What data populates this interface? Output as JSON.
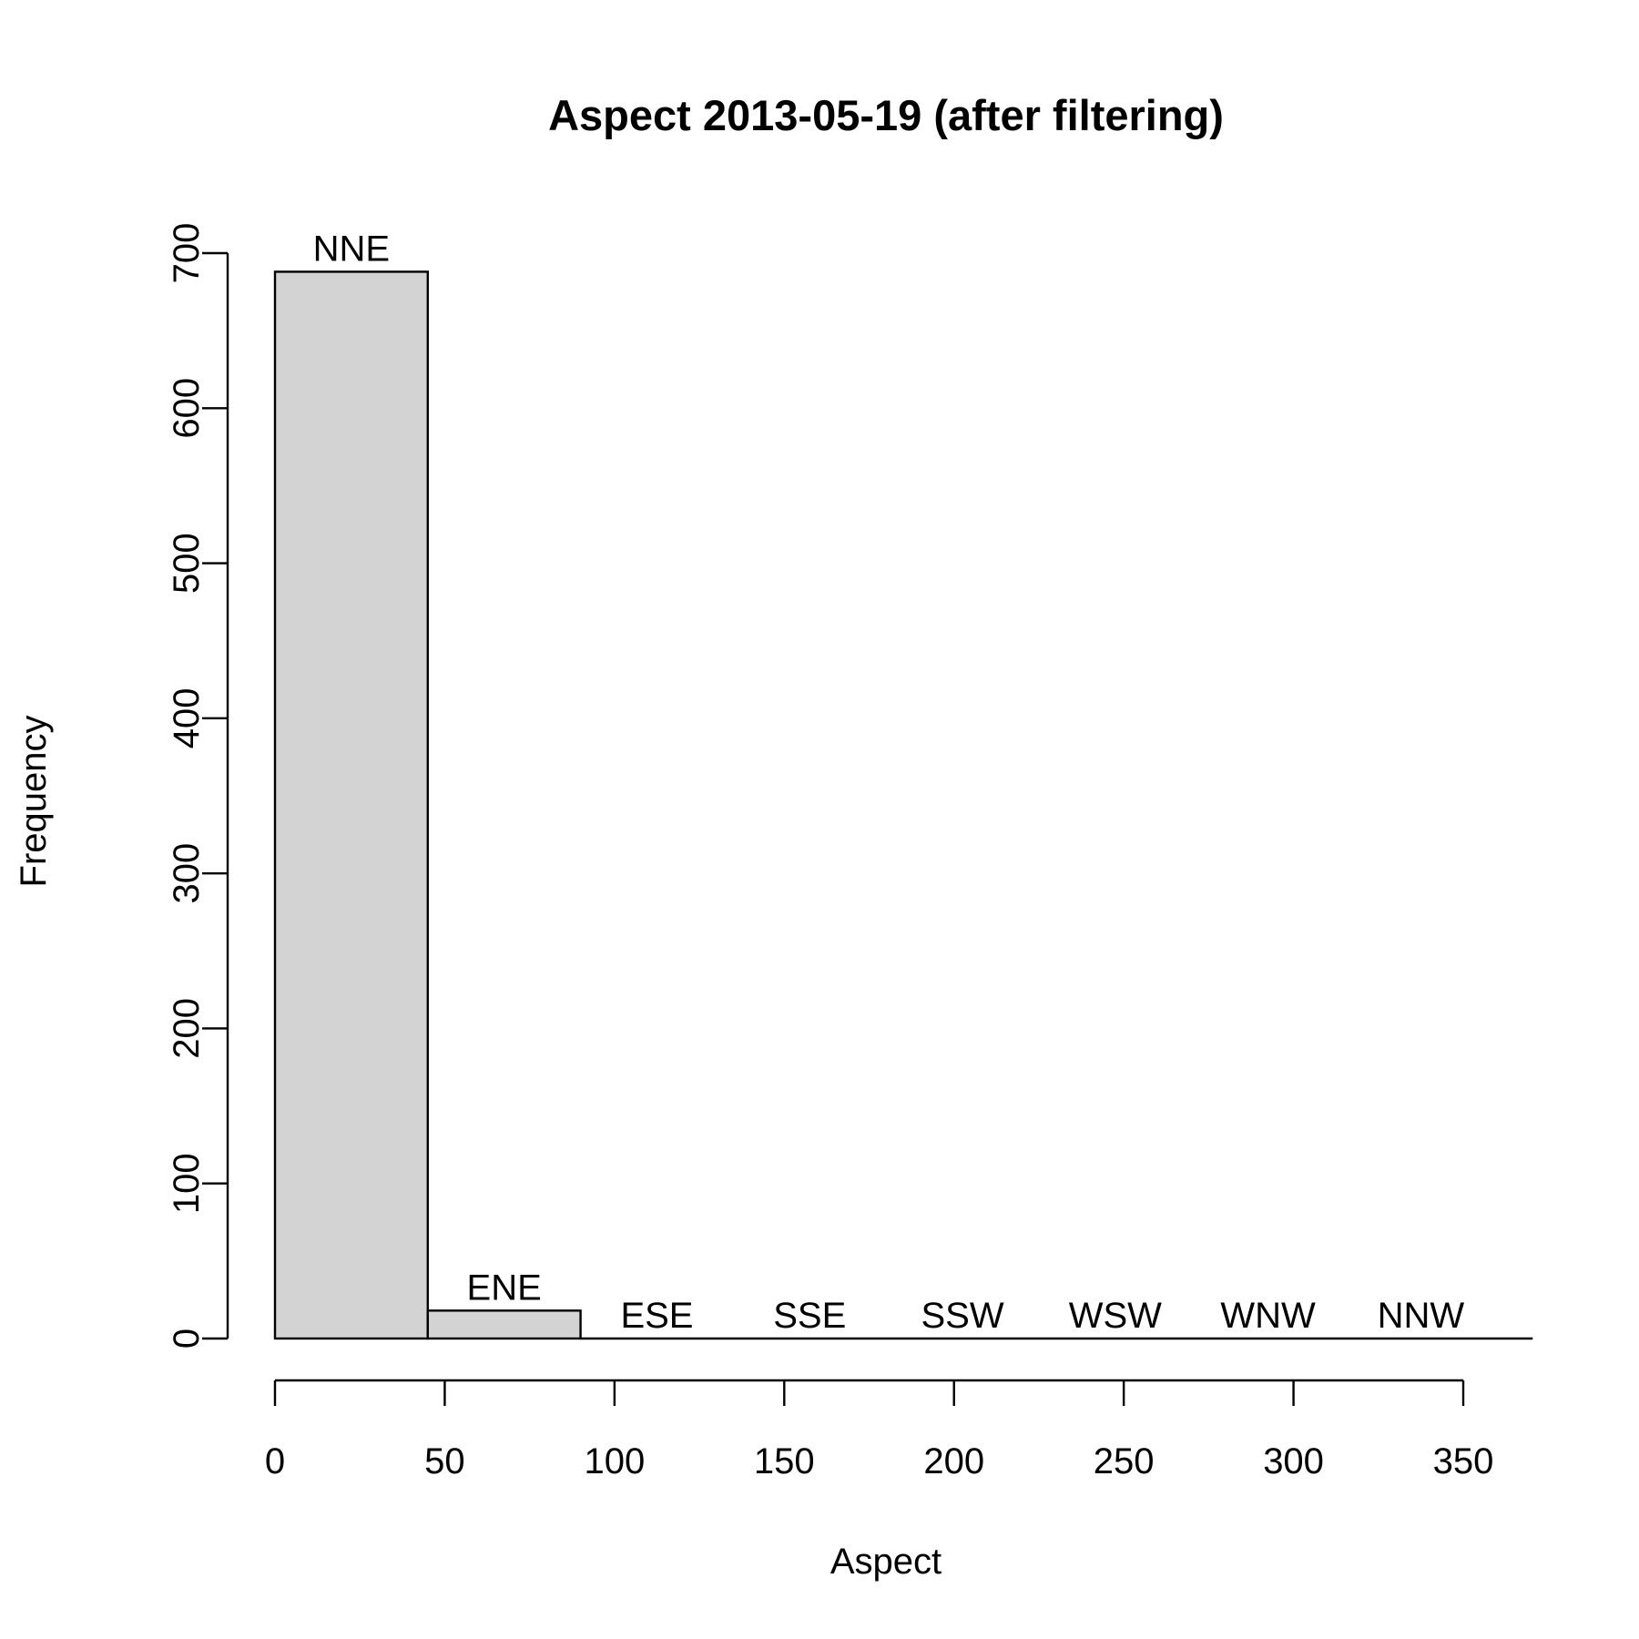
{
  "chart_data": {
    "type": "bar",
    "title": "Aspect  2013-05-19 (after filtering)",
    "xlabel": "Aspect",
    "ylabel": "Frequency",
    "xlim": [
      0,
      360
    ],
    "ylim": [
      0,
      700
    ],
    "x_ticks": [
      0,
      50,
      100,
      150,
      200,
      250,
      300,
      350
    ],
    "y_ticks": [
      0,
      100,
      200,
      300,
      400,
      500,
      600,
      700
    ],
    "bin_width": 45,
    "bins": [
      {
        "start": 0,
        "end": 45,
        "label": "NNE",
        "value": 688
      },
      {
        "start": 45,
        "end": 90,
        "label": "ENE",
        "value": 18
      },
      {
        "start": 90,
        "end": 135,
        "label": "ESE",
        "value": 0
      },
      {
        "start": 135,
        "end": 180,
        "label": "SSE",
        "value": 0
      },
      {
        "start": 180,
        "end": 225,
        "label": "SSW",
        "value": 0
      },
      {
        "start": 225,
        "end": 270,
        "label": "WSW",
        "value": 0
      },
      {
        "start": 270,
        "end": 315,
        "label": "WNW",
        "value": 0
      },
      {
        "start": 315,
        "end": 360,
        "label": "NNW",
        "value": 0
      }
    ],
    "grid": false,
    "legend": "none",
    "colors": {
      "bar_fill": "#d3d3d3",
      "bar_stroke": "#000000"
    }
  }
}
